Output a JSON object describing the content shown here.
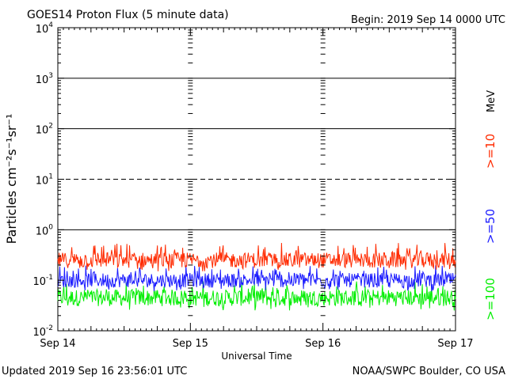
{
  "header": {
    "title": "GOES14 Proton Flux (5 minute data)",
    "begin": "Begin: 2019 Sep 14 0000 UTC"
  },
  "footer": {
    "updated": "Updated 2019 Sep 16 23:56:01 UTC",
    "credit": "NOAA/SWPC Boulder, CO USA"
  },
  "chart_data": {
    "type": "line",
    "title": "GOES14 Proton Flux (5 minute data)",
    "xlabel": "Universal Time",
    "ylabel": "Particles cm⁻²s⁻¹sr⁻¹",
    "yscale": "log",
    "ylim": [
      0.01,
      10000
    ],
    "ytick_labels": [
      {
        "base": "10",
        "exp": "-2"
      },
      {
        "base": "10",
        "exp": "-1"
      },
      {
        "base": "10",
        "exp": "0"
      },
      {
        "base": "10",
        "exp": "1"
      },
      {
        "base": "10",
        "exp": "2"
      },
      {
        "base": "10",
        "exp": "3"
      },
      {
        "base": "10",
        "exp": "4"
      }
    ],
    "x_categories": [
      "Sep 14",
      "Sep 15",
      "Sep 16",
      "Sep 17"
    ],
    "unit_label": "MeV",
    "threshold_lines": [
      {
        "value": 10,
        "style": "dashed"
      },
      {
        "value": 1,
        "style": "solid"
      },
      {
        "value": 100,
        "style": "solid"
      },
      {
        "value": 1000,
        "style": "solid"
      }
    ],
    "series": [
      {
        "name": ">=10",
        "color": "#ff2a00",
        "typical": 0.25,
        "min": 0.15,
        "max": 0.55
      },
      {
        "name": ">=50",
        "color": "#1a1aff",
        "typical": 0.1,
        "min": 0.06,
        "max": 0.2
      },
      {
        "name": ">=100",
        "color": "#00ee00",
        "typical": 0.045,
        "min": 0.025,
        "max": 0.1
      }
    ]
  }
}
